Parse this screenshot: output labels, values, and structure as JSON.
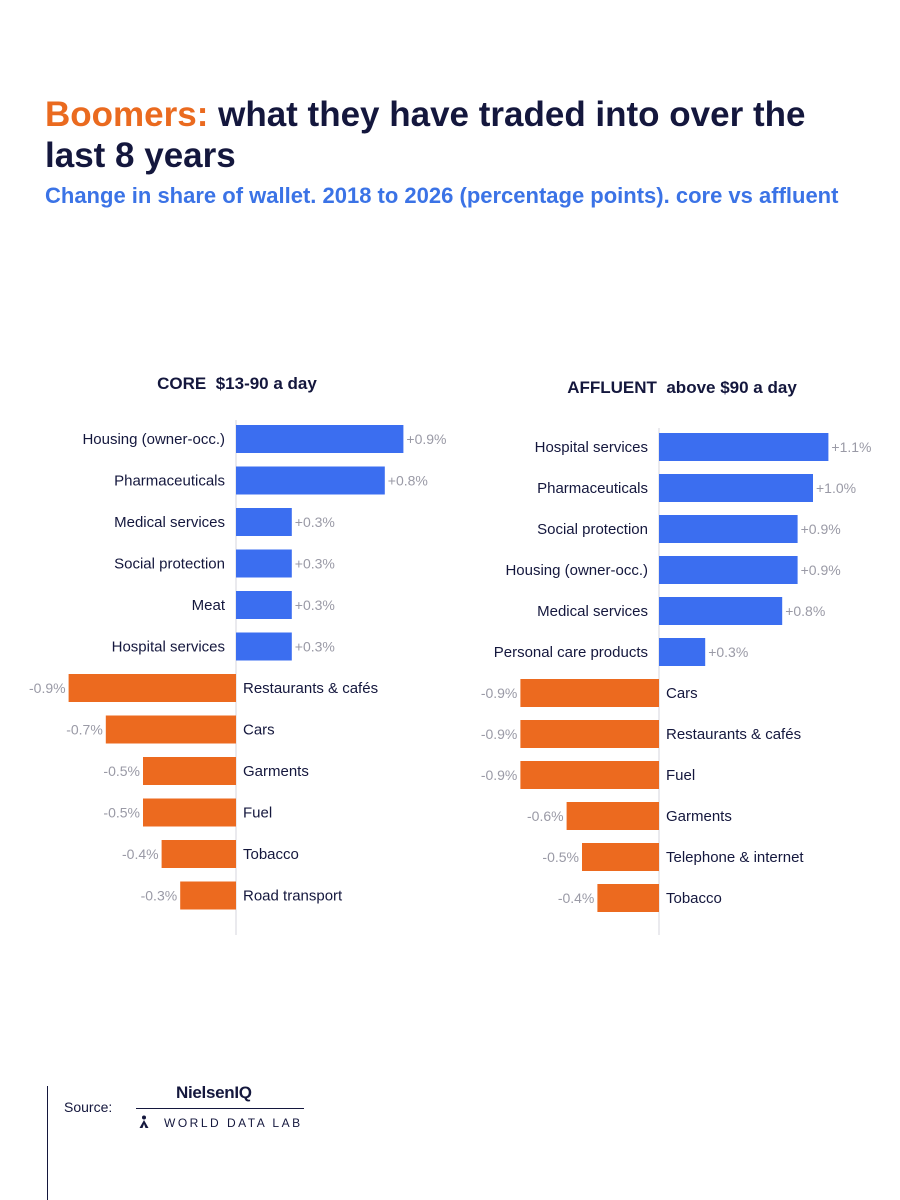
{
  "header": {
    "title_accent": "Boomers:",
    "title_rest": " what they have traded into over the last 8 years",
    "subtitle": "Change in share of wallet. 2018 to 2026 (percentage points). core vs affluent"
  },
  "colors": {
    "positive": "#3b6ef0",
    "negative": "#ec6a1f",
    "accent": "#ea6a1f",
    "subtitle": "#3b73e6",
    "navy": "#14173d"
  },
  "chart_data": [
    {
      "type": "bar",
      "orientation": "horizontal",
      "title": "CORE  $13-90 a day",
      "categories": [
        "Housing (owner-occ.)",
        "Pharmaceuticals",
        "Medical services",
        "Social protection",
        "Meat",
        "Hospital services",
        "Restaurants & cafés",
        "Cars",
        "Garments",
        "Fuel",
        "Tobacco",
        "Road transport"
      ],
      "values": [
        0.9,
        0.8,
        0.3,
        0.3,
        0.3,
        0.3,
        -0.9,
        -0.7,
        -0.5,
        -0.5,
        -0.4,
        -0.3
      ],
      "value_labels": [
        "+0.9%",
        "+0.8%",
        "+0.3%",
        "+0.3%",
        "+0.3%",
        "+0.3%",
        "-0.9%",
        "-0.7%",
        "-0.5%",
        "-0.5%",
        "-0.4%",
        "-0.3%"
      ],
      "xlim": [
        -0.9,
        0.9
      ]
    },
    {
      "type": "bar",
      "orientation": "horizontal",
      "title": "AFFLUENT  above $90 a day",
      "categories": [
        "Hospital services",
        "Pharmaceuticals",
        "Social protection",
        "Housing (owner-occ.)",
        "Medical services",
        "Personal care products",
        "Cars",
        "Restaurants & cafés",
        "Fuel",
        "Garments",
        "Telephone & internet",
        "Tobacco"
      ],
      "values": [
        1.1,
        1.0,
        0.9,
        0.9,
        0.8,
        0.3,
        -0.9,
        -0.9,
        -0.9,
        -0.6,
        -0.5,
        -0.4
      ],
      "value_labels": [
        "+1.1%",
        "+1.0%",
        "+0.9%",
        "+0.9%",
        "+0.8%",
        "+0.3%",
        "-0.9%",
        "-0.9%",
        "-0.9%",
        "-0.6%",
        "-0.5%",
        "-0.4%"
      ],
      "xlim": [
        -0.9,
        1.1
      ]
    }
  ],
  "footer": {
    "source_label": "Source:",
    "brand_1": "NielsenIQ",
    "brand_2": "WORLD DATA LAB"
  }
}
